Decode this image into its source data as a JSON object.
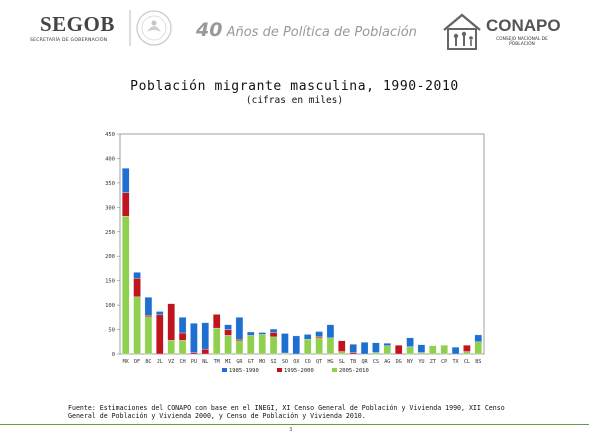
{
  "header": {
    "segob": "SEGOB",
    "segob_sub": "SECRETARÍA DE GOBERNACIÓN",
    "title_num": "40",
    "title_rest": "Años de Política de Población",
    "conapo": "CONAPO",
    "conapo_sub": "CONSEJO NACIONAL DE POBLACIÓN"
  },
  "colors": {
    "series1": "#1f6fd0",
    "series2": "#c0141e",
    "series3": "#8fd14f",
    "grid": "#d9d9d9",
    "axis": "#888888",
    "footline": "#6a9a3a"
  },
  "source_note": "Fuente: Estimaciones del CONAPO con base en el INEGI, XI Censo General de Población y Vivienda 1990, XII Censo General de Población y Vivienda 2000, y Censo de Población y Vivienda 2010.",
  "page_number": "3",
  "chart_data": {
    "type": "bar",
    "stacked": true,
    "title": "Población migrante masculina, 1990-2010",
    "subtitle": "(cifras en miles)",
    "xlabel": "",
    "ylabel": "",
    "ylim": [
      0,
      450
    ],
    "yticks": [
      0,
      50,
      100,
      150,
      200,
      250,
      300,
      350,
      400,
      450
    ],
    "grid": false,
    "legend_position": "bottom",
    "categories": [
      "MX",
      "DF",
      "BC",
      "JL",
      "VZ",
      "CH",
      "PU",
      "NL",
      "TM",
      "MI",
      "GR",
      "GT",
      "MO",
      "SI",
      "SO",
      "OX",
      "CO",
      "QT",
      "HG",
      "SL",
      "TB",
      "QR",
      "CS",
      "AG",
      "DG",
      "NY",
      "YU",
      "ZT",
      "CP",
      "TX",
      "CL",
      "BS"
    ],
    "series": [
      {
        "name": "1985-1990",
        "values": [
          50,
          12,
          37,
          7,
          0,
          32,
          60,
          54,
          0,
          10,
          45,
          7,
          4,
          7,
          40,
          37,
          10,
          10,
          27,
          0,
          17,
          24,
          20,
          5,
          0,
          18,
          16,
          0,
          0,
          14,
          0,
          14
        ]
      },
      {
        "name": "1995-2000",
        "values": [
          48,
          38,
          3,
          80,
          75,
          15,
          3,
          10,
          28,
          12,
          3,
          0,
          0,
          9,
          0,
          0,
          0,
          3,
          0,
          22,
          3,
          0,
          0,
          0,
          18,
          0,
          0,
          0,
          0,
          0,
          13,
          0
        ]
      },
      {
        "name": "2005-2010",
        "values": [
          282,
          117,
          76,
          0,
          28,
          28,
          0,
          0,
          53,
          38,
          27,
          38,
          40,
          35,
          2,
          0,
          30,
          33,
          33,
          5,
          0,
          0,
          3,
          17,
          0,
          15,
          3,
          17,
          18,
          0,
          5,
          25
        ]
      }
    ]
  }
}
